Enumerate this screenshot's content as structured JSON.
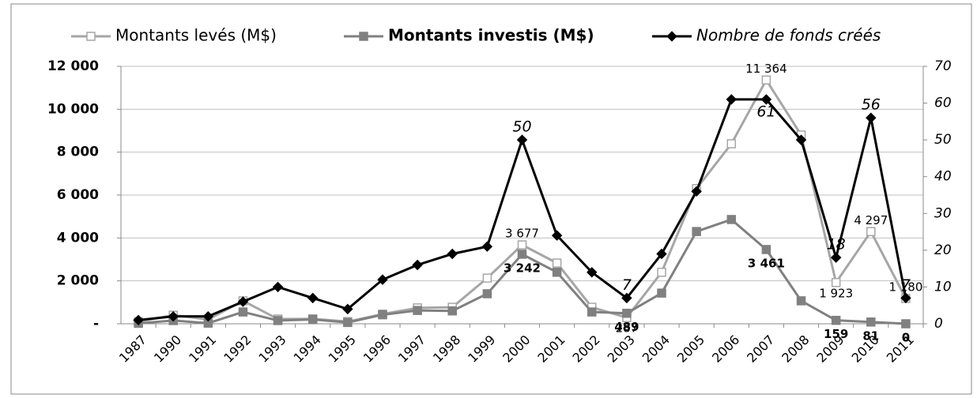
{
  "chart_data": {
    "type": "line",
    "categories": [
      "1987",
      "1990",
      "1991",
      "1992",
      "1993",
      "1994",
      "1995",
      "1996",
      "1997",
      "1998",
      "1999",
      "2000",
      "2001",
      "2002",
      "2003",
      "2004",
      "2005",
      "2006",
      "2007",
      "2008",
      "2009",
      "2010",
      "2011"
    ],
    "series": [
      {
        "name": "Montants levés (M$)",
        "color": "#a6a6a6",
        "marker": "square-open",
        "axis": "y",
        "values": [
          100,
          400,
          200,
          1070,
          220,
          230,
          100,
          450,
          740,
          770,
          2130,
          3677,
          2830,
          770,
          287,
          2400,
          6300,
          8390,
          11364,
          8800,
          1923,
          4297,
          1180
        ],
        "value_labels": [
          null,
          null,
          null,
          null,
          null,
          null,
          null,
          null,
          null,
          null,
          null,
          "3 677",
          null,
          null,
          "287",
          null,
          null,
          null,
          "11 364",
          null,
          "1 923",
          "4 297",
          "1 180"
        ]
      },
      {
        "name": "Montants investis (M$)",
        "color": "#808080",
        "marker": "square",
        "axis": "y",
        "values": [
          20,
          150,
          30,
          550,
          150,
          200,
          60,
          420,
          620,
          600,
          1400,
          3242,
          2400,
          550,
          489,
          1430,
          4300,
          4860,
          3461,
          1070,
          159,
          81,
          0
        ],
        "value_labels": [
          null,
          null,
          null,
          null,
          null,
          null,
          null,
          null,
          null,
          null,
          null,
          "3 242",
          null,
          null,
          "489",
          null,
          null,
          null,
          "3 461",
          null,
          "159",
          "81",
          "0"
        ]
      },
      {
        "name": "Nombre de fonds créés",
        "color": "#000000",
        "marker": "diamond",
        "axis": "y2",
        "values": [
          1,
          2,
          2,
          6,
          10,
          7,
          4,
          12,
          16,
          19,
          21,
          50,
          24,
          14,
          7,
          19,
          36,
          61,
          61,
          50,
          18,
          56,
          7
        ],
        "value_labels": [
          null,
          null,
          null,
          null,
          null,
          null,
          null,
          null,
          null,
          null,
          null,
          "50",
          null,
          null,
          "7",
          null,
          null,
          null,
          "61",
          null,
          "18",
          "56",
          "7"
        ]
      }
    ],
    "ylim": [
      0,
      12000
    ],
    "yticks": [
      {
        "value": 0,
        "label": "-"
      },
      {
        "value": 2000,
        "label": "2 000"
      },
      {
        "value": 4000,
        "label": "4 000"
      },
      {
        "value": 6000,
        "label": "6 000"
      },
      {
        "value": 8000,
        "label": "8 000"
      },
      {
        "value": 10000,
        "label": "10 000"
      },
      {
        "value": 12000,
        "label": "12 000"
      }
    ],
    "y2lim": [
      0,
      70
    ],
    "y2ticks": [
      0,
      10,
      20,
      30,
      40,
      50,
      60,
      70
    ],
    "grid": true,
    "legend": "top"
  }
}
